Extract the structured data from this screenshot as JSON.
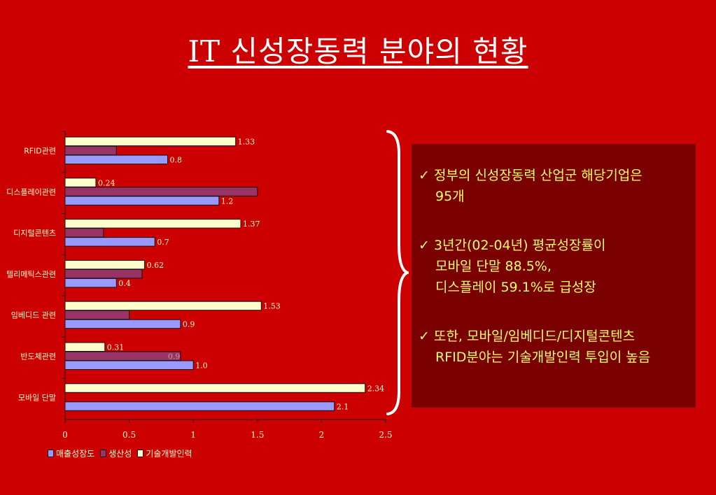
{
  "title": "IT 신성장동력 분야의 현황",
  "colors": {
    "background": "#cc0000",
    "textbox": "#7a0000",
    "bullet_text": "#ffff66",
    "series_sales": "#9999ff",
    "series_productivity": "#993366",
    "series_rnd": "#ffffcc"
  },
  "bullets": [
    {
      "icon": "checkmark-icon",
      "check": "✓",
      "lines": [
        "정부의 신성장동력 산업군 해당기업은",
        "95개"
      ]
    },
    {
      "icon": "checkmark-icon",
      "check": "✓",
      "lines": [
        "3년간(02-04년) 평균성장률이",
        "모바일 단말 88.5%,",
        "디스플레이 59.1%로 급성장"
      ]
    },
    {
      "icon": "checkmark-icon",
      "check": "✓",
      "lines": [
        "또한, 모바일/임베디드/디지털콘텐츠",
        "RFID분야는 기술개발인력 투입이 높음"
      ]
    }
  ],
  "chart_data": {
    "type": "bar",
    "orientation": "horizontal",
    "categories": [
      "RFID관련",
      "디스플레이관련",
      "디지털콘텐츠",
      "텔리메틱스관련",
      "임베디드 관련",
      "반도체관련",
      "모바일 단말"
    ],
    "series": [
      {
        "name": "매출성장도",
        "values": [
          0.8,
          1.2,
          0.7,
          0.4,
          0.9,
          1.0,
          2.1
        ],
        "color": "#9999ff"
      },
      {
        "name": "생산성",
        "values": [
          0.4,
          1.5,
          0.3,
          0.6,
          0.5,
          0.9,
          null
        ],
        "color": "#993366"
      },
      {
        "name": "기술개발인력",
        "values": [
          1.33,
          0.24,
          1.37,
          0.62,
          1.53,
          0.31,
          2.34
        ],
        "color": "#ffffcc"
      }
    ],
    "data_labels": [
      [
        "0.8",
        "1.2",
        "0.7",
        "0.4",
        "0.9",
        "1.0",
        "2.1"
      ],
      [
        "",
        "",
        "",
        "",
        "",
        "0.9",
        ""
      ],
      [
        "1.33",
        "0.24",
        "1.37",
        "0.62",
        "1.53",
        "0.31",
        "2.34"
      ]
    ],
    "x_ticks": [
      "0",
      "0.5",
      "1",
      "1.5",
      "2",
      "2.5"
    ],
    "xlim": [
      0,
      2.5
    ],
    "legend_position": "bottom-left",
    "grid": false
  }
}
